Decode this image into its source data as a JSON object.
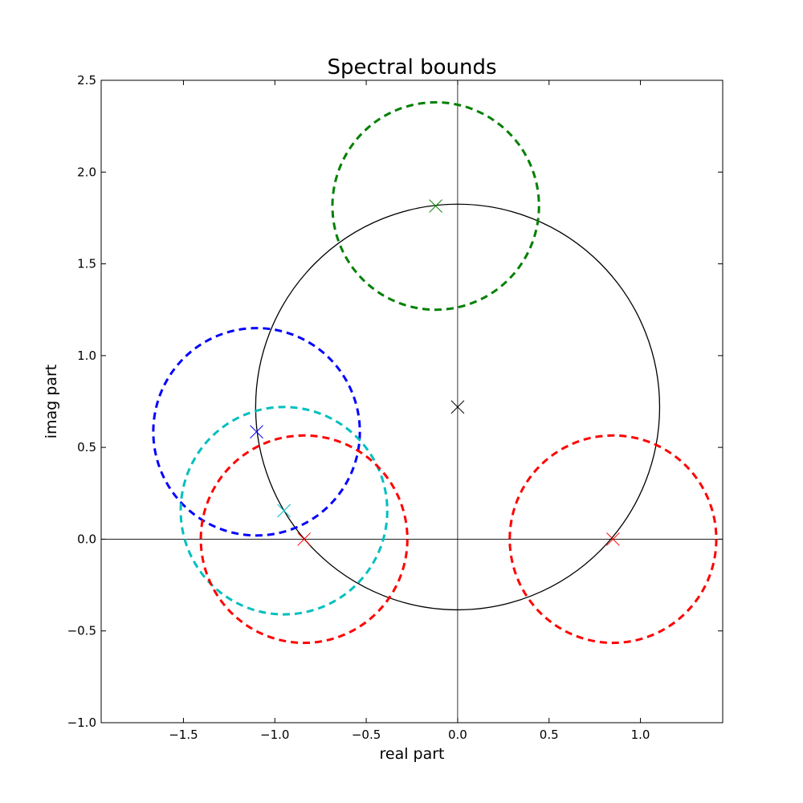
{
  "chart_data": {
    "type": "scatter",
    "title": "Spectral bounds",
    "xlabel": "real part",
    "ylabel": "imag part",
    "xlim": [
      -1.95,
      1.45
    ],
    "ylim": [
      -1.0,
      2.5
    ],
    "xticks": [
      -1.5,
      -1.0,
      -0.5,
      0.0,
      0.5,
      1.0
    ],
    "xtick_labels": [
      "−1.5",
      "−1.0",
      "−0.5",
      "0.0",
      "0.5",
      "1.0"
    ],
    "yticks": [
      -1.0,
      -0.5,
      0.0,
      0.5,
      1.0,
      1.5,
      2.0,
      2.5
    ],
    "ytick_labels": [
      "−1.0",
      "−0.5",
      "0.0",
      "0.5",
      "1.0",
      "1.5",
      "2.0",
      "2.5"
    ],
    "grid": false,
    "reference_lines": {
      "x": 0.0,
      "y": 0.0
    },
    "circles": [
      {
        "center": [
          0.0,
          0.72
        ],
        "radius": 1.105,
        "color": "#000000",
        "style": "solid"
      },
      {
        "center": [
          -0.12,
          1.815
        ],
        "radius": 0.565,
        "color": "#008000",
        "style": "dashed"
      },
      {
        "center": [
          -1.1,
          0.585
        ],
        "radius": 0.565,
        "color": "#0000ff",
        "style": "dashed"
      },
      {
        "center": [
          -0.95,
          0.155
        ],
        "radius": 0.565,
        "color": "#00bfbf",
        "style": "dashed"
      },
      {
        "center": [
          -0.84,
          0.0
        ],
        "radius": 0.565,
        "color": "#ff0000",
        "style": "dashed"
      },
      {
        "center": [
          0.85,
          0.0
        ],
        "radius": 0.565,
        "color": "#ff0000",
        "style": "dashed"
      }
    ],
    "points": [
      {
        "x": 0.0,
        "y": 0.72,
        "color": "#000000",
        "marker": "x"
      },
      {
        "x": -0.12,
        "y": 1.815,
        "color": "#008000",
        "marker": "x"
      },
      {
        "x": -1.1,
        "y": 0.585,
        "color": "#0000ff",
        "marker": "x"
      },
      {
        "x": -0.95,
        "y": 0.155,
        "color": "#00bfbf",
        "marker": "x"
      },
      {
        "x": -0.84,
        "y": 0.0,
        "color": "#ff0000",
        "marker": "x"
      },
      {
        "x": 0.85,
        "y": 0.0,
        "color": "#ff0000",
        "marker": "x"
      }
    ]
  }
}
